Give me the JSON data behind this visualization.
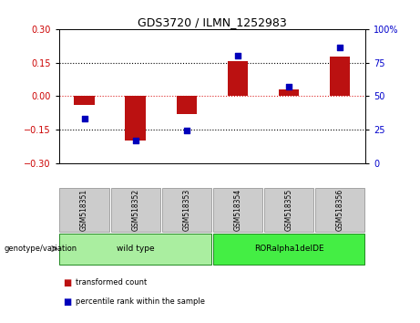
{
  "title": "GDS3720 / ILMN_1252983",
  "samples": [
    "GSM518351",
    "GSM518352",
    "GSM518353",
    "GSM518354",
    "GSM518355",
    "GSM518356"
  ],
  "bar_values": [
    -0.04,
    -0.2,
    -0.08,
    0.155,
    0.03,
    0.175
  ],
  "scatter_values": [
    33,
    17,
    24,
    80,
    57,
    86
  ],
  "ylim_left": [
    -0.3,
    0.3
  ],
  "ylim_right": [
    0,
    100
  ],
  "yticks_left": [
    -0.3,
    -0.15,
    0,
    0.15,
    0.3
  ],
  "yticks_right": [
    0,
    25,
    50,
    75,
    100
  ],
  "hlines_dotted": [
    0.15,
    -0.15
  ],
  "bar_color": "#bb1111",
  "scatter_color": "#0000bb",
  "bar_width": 0.4,
  "groups": [
    {
      "label": "wild type",
      "samples_idx": [
        0,
        1,
        2
      ],
      "color": "#aaeea0"
    },
    {
      "label": "RORalpha1delDE",
      "samples_idx": [
        3,
        4,
        5
      ],
      "color": "#44ee44"
    }
  ],
  "group_label": "genotype/variation",
  "legend_items": [
    {
      "label": "transformed count",
      "color": "#bb1111"
    },
    {
      "label": "percentile rank within the sample",
      "color": "#0000bb"
    }
  ],
  "bg_color": "#ffffff",
  "box_color": "#cccccc",
  "box_edge_color": "#888888",
  "group_edge_color": "#228822"
}
